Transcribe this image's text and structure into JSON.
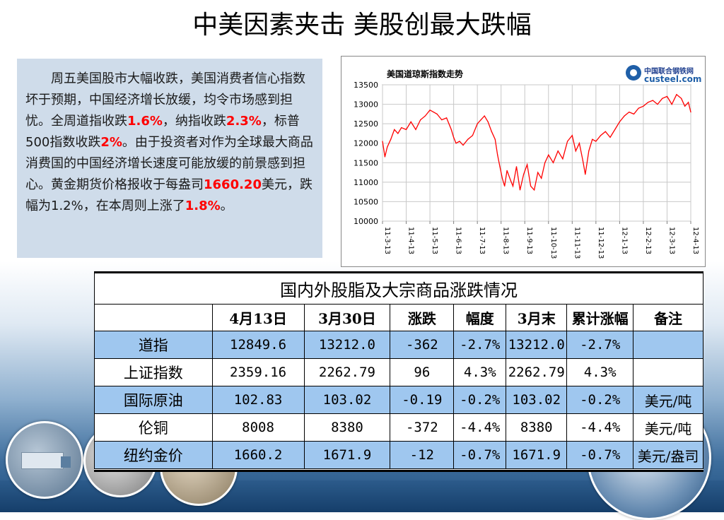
{
  "title": "中美因素夹击  美股创最大跌幅",
  "summary": {
    "t1": "周五美国股市大幅收跌，美国消费者信心指数坏于预期，中国经济增长放缓，均令市场感到担忧。全周道指收跌",
    "v1": "1.6%",
    "t2": "，纳指收跌",
    "v2": "2.3%",
    "t3": "，标普500指数收跌",
    "v3": "2%",
    "t4": "。由于投资者对作为全球最大商品消费国的中国经济增长速度可能放缓的前景感到担心。黄金期货价格报收于每盎司",
    "v4": "1660.20",
    "t5": "美元，跌幅为1.2%，在本周则上涨了",
    "v5": "1.8%",
    "t6": "。",
    "highlight_color": "#ff0000"
  },
  "chart_logo": {
    "cn": "中国联合钢铁网",
    "en": "custeel.com"
  },
  "chart_data": {
    "type": "line",
    "title": "美国道琼斯指数走势",
    "ylim": [
      10000,
      13500
    ],
    "yticks": [
      13500,
      13000,
      12500,
      12000,
      11500,
      11000,
      10500,
      10000
    ],
    "xticks": [
      "11-3-13",
      "11-4-13",
      "11-5-13",
      "11-6-13",
      "11-7-13",
      "11-8-13",
      "11-9-13",
      "11-10-13",
      "11-11-13",
      "11-12-13",
      "12-1-13",
      "12-2-13",
      "12-3-13",
      "12-4-13"
    ],
    "grid": true,
    "line_color": "#ff0000",
    "series": [
      {
        "x": [
          0,
          0.1,
          0.2,
          0.35,
          0.5,
          0.65,
          0.8,
          1.0,
          1.2,
          1.4,
          1.6,
          1.8,
          2.0,
          2.15,
          2.3,
          2.5,
          2.7,
          2.9,
          3.0,
          3.1,
          3.25,
          3.4,
          3.6,
          3.8,
          4.0,
          4.15,
          4.3,
          4.45,
          4.6,
          4.75,
          4.85,
          4.95,
          5.05,
          5.15,
          5.25,
          5.4,
          5.5,
          5.65,
          5.8,
          5.95,
          6.1,
          6.25,
          6.4,
          6.55,
          6.7,
          6.85,
          7.0,
          7.2,
          7.4,
          7.6,
          7.8,
          8.0,
          8.15,
          8.3,
          8.45,
          8.55,
          8.7,
          8.85,
          9.0,
          9.2,
          9.4,
          9.6,
          9.8,
          10.0,
          10.2,
          10.4,
          10.6,
          10.8,
          11.0,
          11.2,
          11.4,
          11.6,
          11.8,
          12.0,
          12.2,
          12.4,
          12.6,
          12.75,
          12.9,
          13.0
        ],
        "y": [
          12050,
          11650,
          11900,
          12100,
          12350,
          12250,
          12400,
          12350,
          12550,
          12350,
          12600,
          12700,
          12850,
          12800,
          12750,
          12600,
          12650,
          12350,
          12150,
          12000,
          12050,
          11950,
          12100,
          12200,
          12500,
          12600,
          12700,
          12550,
          12300,
          12100,
          11700,
          11400,
          11100,
          10900,
          11300,
          11050,
          10900,
          11400,
          10800,
          11200,
          11450,
          10900,
          10800,
          11250,
          11100,
          11500,
          11700,
          11500,
          11800,
          11600,
          12050,
          12200,
          11800,
          12000,
          11550,
          11200,
          11800,
          12100,
          12050,
          12200,
          12300,
          12150,
          12350,
          12550,
          12700,
          12800,
          12750,
          12900,
          12950,
          13050,
          13100,
          13000,
          13150,
          13200,
          13000,
          13250,
          13150,
          12950,
          13050,
          12800
        ]
      }
    ]
  },
  "table": {
    "caption": "国内外股脂及大宗商品涨跌情况",
    "headers": [
      "",
      "4月13日",
      "3月30日",
      "涨跌",
      "幅度",
      "3月末",
      "累计涨幅",
      "备注"
    ],
    "rows": [
      [
        "道指",
        "12849.6",
        "13212.0",
        "-362",
        "-2.7%",
        "13212.0",
        "-2.7%",
        ""
      ],
      [
        "上证指数",
        "2359.16",
        "2262.79",
        "96",
        "4.3%",
        "2262.79",
        "4.3%",
        ""
      ],
      [
        "国际原油",
        "102.83",
        "103.02",
        "-0.19",
        "-0.2%",
        "103.02",
        "-0.2%",
        "美元/吨"
      ],
      [
        "伦铜",
        "8008",
        "8380",
        "-372",
        "-4.4%",
        "8380",
        "-4.4%",
        "美元/吨"
      ],
      [
        "纽约金价",
        "1660.2",
        "1671.9",
        "-12",
        "-0.7%",
        "1671.9",
        "-0.7%",
        "美元/盎司"
      ]
    ],
    "alt_row_color": "#9fc7ef"
  }
}
